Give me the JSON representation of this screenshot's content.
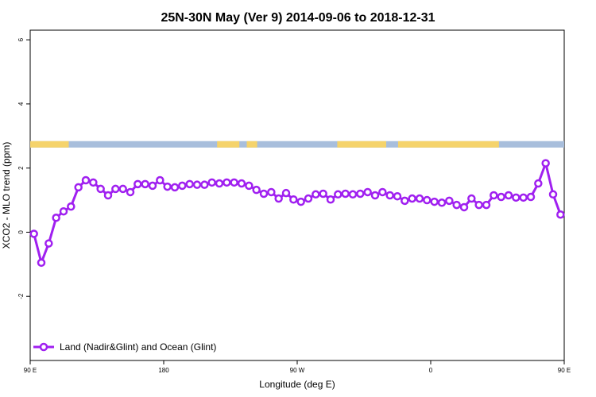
{
  "colors": {
    "series": "#a020f0",
    "land": "#f5d36b",
    "ocean": "#a8bedc",
    "axis": "#000000",
    "background": "#ffffff"
  },
  "chart_data": {
    "type": "line",
    "title": "25N-30N May (Ver 9)   2014-09-06 to 2018-12-31",
    "xlabel": "Longitude (deg E)",
    "ylabel": "XCO2 - MLO trend (ppm)",
    "xlim": [
      0,
      360
    ],
    "ylim": [
      -4,
      6.3
    ],
    "x_ticks": [
      {
        "value": 0,
        "label": "90 E"
      },
      {
        "value": 90,
        "label": "180"
      },
      {
        "value": 180,
        "label": "90 W"
      },
      {
        "value": 270,
        "label": "0"
      },
      {
        "value": 360,
        "label": "90 E"
      },
      {
        "value": 450,
        "label": "180"
      }
    ],
    "y_ticks": [
      {
        "value": -2,
        "label": "-2"
      },
      {
        "value": 0,
        "label": "0"
      },
      {
        "value": 2,
        "label": "2"
      },
      {
        "value": 4,
        "label": "4"
      },
      {
        "value": 6,
        "label": "6"
      }
    ],
    "land_ocean_band": {
      "y_range": [
        2.64,
        2.84
      ],
      "land_segments": [
        [
          0,
          26
        ],
        [
          126,
          141
        ],
        [
          146,
          153
        ],
        [
          207,
          240
        ],
        [
          248,
          316
        ]
      ]
    },
    "series": [
      {
        "name": "Land (Nadir&Glint) and Ocean (Glint)",
        "x": [
          2.5,
          7.5,
          12.5,
          17.5,
          22.5,
          27.5,
          32.5,
          37.5,
          42.5,
          47.5,
          52.5,
          57.5,
          62.5,
          67.5,
          72.5,
          77.5,
          82.5,
          87.5,
          92.5,
          97.5,
          102.5,
          107.5,
          112.5,
          117.5,
          122.5,
          127.5,
          132.5,
          137.5,
          142.5,
          147.5,
          152.5,
          157.5,
          162.5,
          167.5,
          172.5,
          177.5,
          182.5,
          187.5,
          192.5,
          197.5,
          202.5,
          207.5,
          212.5,
          217.5,
          222.5,
          227.5,
          232.5,
          237.5,
          242.5,
          247.5,
          252.5,
          257.5,
          262.5,
          267.5,
          272.5,
          277.5,
          282.5,
          287.5,
          292.5,
          297.5,
          302.5,
          307.5,
          312.5,
          317.5,
          322.5,
          327.5,
          332.5,
          337.5,
          342.5,
          347.5,
          352.5,
          357.5
        ],
        "y": [
          -0.05,
          -0.95,
          -0.35,
          0.45,
          0.65,
          0.8,
          1.4,
          1.62,
          1.55,
          1.35,
          1.15,
          1.35,
          1.35,
          1.25,
          1.5,
          1.5,
          1.45,
          1.62,
          1.42,
          1.4,
          1.45,
          1.5,
          1.48,
          1.48,
          1.55,
          1.52,
          1.55,
          1.55,
          1.52,
          1.45,
          1.32,
          1.2,
          1.25,
          1.05,
          1.22,
          1.02,
          0.95,
          1.05,
          1.18,
          1.2,
          1.02,
          1.18,
          1.2,
          1.18,
          1.2,
          1.25,
          1.15,
          1.25,
          1.15,
          1.12,
          0.98,
          1.05,
          1.05,
          1.0,
          0.95,
          0.92,
          0.98,
          0.85,
          0.78,
          1.05,
          0.85,
          0.85,
          1.15,
          1.1,
          1.15,
          1.08,
          1.08,
          1.1,
          1.52,
          2.15,
          1.18,
          0.55
        ],
        "color": "#a020f0"
      }
    ],
    "legend": {
      "position": "bottom-left"
    },
    "grid": false
  }
}
